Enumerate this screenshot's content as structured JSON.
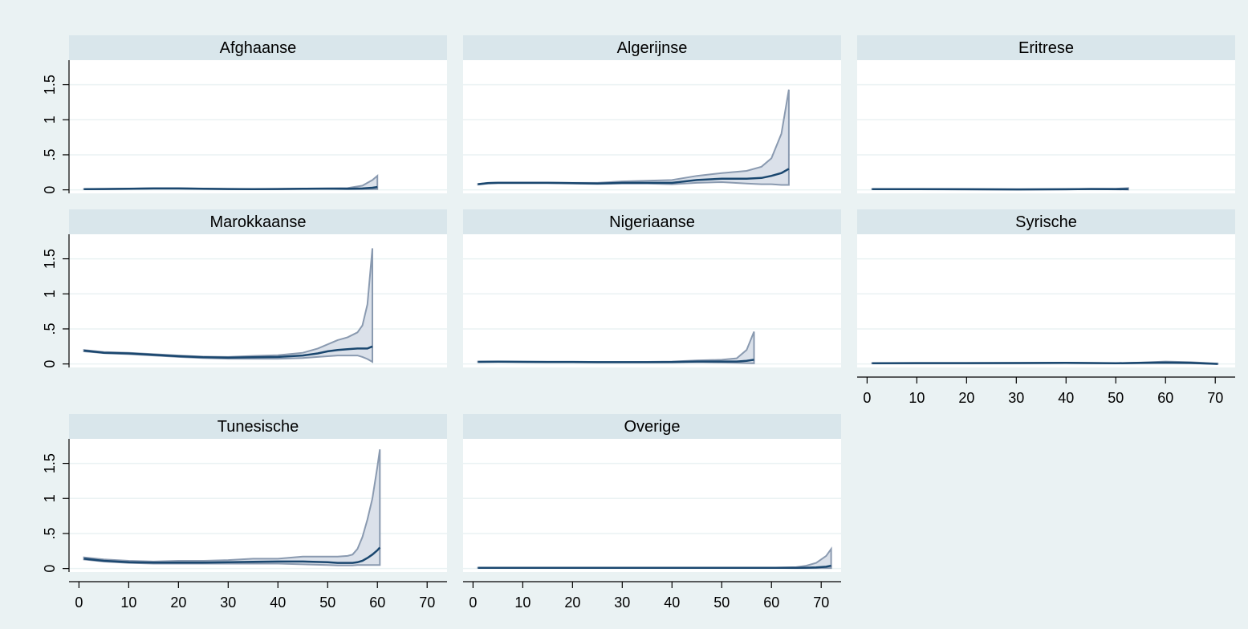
{
  "colors": {
    "background": "#eaf2f3",
    "panel": "#ffffff",
    "strip": "#d9e6eb",
    "estimate_line": "#1a476f",
    "ci_band_fill": "#dbe1ea",
    "ci_band_edge": "#8a9ab0"
  },
  "chart_data": {
    "type": "area",
    "layout": "small multiples, 3 columns, 3 rows",
    "title": "",
    "xlabel": "",
    "ylabel": "",
    "xlim": [
      0,
      72
    ],
    "ylim": [
      -0.05,
      1.85
    ],
    "x_ticks": [
      0,
      10,
      20,
      30,
      40,
      50,
      60,
      70
    ],
    "y_ticks": [
      0,
      0.5,
      1,
      1.5
    ],
    "y_tick_labels": [
      "0",
      ".5",
      "1",
      "1.5"
    ],
    "grid": true,
    "legend": "none",
    "panels": [
      {
        "name": "Afghaanse",
        "x": [
          1,
          5,
          10,
          15,
          20,
          25,
          30,
          35,
          40,
          45,
          50,
          54,
          57,
          59,
          60
        ],
        "y": [
          0.01,
          0.012,
          0.015,
          0.02,
          0.02,
          0.015,
          0.012,
          0.01,
          0.012,
          0.015,
          0.018,
          0.015,
          0.02,
          0.03,
          0.04
        ],
        "lower": [
          0.008,
          0.01,
          0.012,
          0.016,
          0.016,
          0.012,
          0.01,
          0.008,
          0.01,
          0.012,
          0.014,
          0.01,
          0.01,
          0.01,
          0.01
        ],
        "upper": [
          0.012,
          0.014,
          0.018,
          0.024,
          0.024,
          0.018,
          0.014,
          0.012,
          0.014,
          0.018,
          0.022,
          0.025,
          0.06,
          0.14,
          0.2
        ]
      },
      {
        "name": "Algerijnse",
        "x": [
          1,
          3,
          5,
          10,
          15,
          20,
          25,
          30,
          35,
          40,
          45,
          50,
          55,
          58,
          60,
          62,
          63.5
        ],
        "y": [
          0.08,
          0.095,
          0.1,
          0.1,
          0.1,
          0.095,
          0.09,
          0.1,
          0.1,
          0.1,
          0.14,
          0.16,
          0.16,
          0.17,
          0.2,
          0.24,
          0.3
        ],
        "lower": [
          0.075,
          0.09,
          0.095,
          0.095,
          0.095,
          0.09,
          0.085,
          0.09,
          0.09,
          0.08,
          0.1,
          0.11,
          0.09,
          0.08,
          0.08,
          0.07,
          0.07
        ],
        "upper": [
          0.085,
          0.1,
          0.105,
          0.105,
          0.105,
          0.1,
          0.1,
          0.12,
          0.13,
          0.14,
          0.2,
          0.24,
          0.27,
          0.33,
          0.45,
          0.8,
          1.43
        ]
      },
      {
        "name": "Eritrese",
        "x": [
          1,
          10,
          20,
          30,
          40,
          45,
          50,
          52.5
        ],
        "y": [
          0.01,
          0.01,
          0.008,
          0.006,
          0.008,
          0.012,
          0.01,
          0.012
        ],
        "lower": [
          0.008,
          0.008,
          0.006,
          0.004,
          0.006,
          0.009,
          0.006,
          0.004
        ],
        "upper": [
          0.012,
          0.012,
          0.01,
          0.008,
          0.01,
          0.015,
          0.016,
          0.025
        ]
      },
      {
        "name": "Marokkaanse",
        "x": [
          1,
          5,
          10,
          15,
          20,
          25,
          30,
          35,
          40,
          45,
          48,
          50,
          52,
          54,
          56,
          57,
          58,
          59
        ],
        "y": [
          0.19,
          0.16,
          0.15,
          0.13,
          0.11,
          0.095,
          0.09,
          0.095,
          0.1,
          0.12,
          0.15,
          0.18,
          0.2,
          0.21,
          0.22,
          0.22,
          0.22,
          0.25
        ],
        "lower": [
          0.18,
          0.155,
          0.14,
          0.12,
          0.1,
          0.085,
          0.075,
          0.075,
          0.075,
          0.085,
          0.1,
          0.11,
          0.12,
          0.12,
          0.12,
          0.1,
          0.07,
          0.03
        ],
        "upper": [
          0.2,
          0.17,
          0.16,
          0.14,
          0.12,
          0.105,
          0.1,
          0.115,
          0.125,
          0.16,
          0.22,
          0.28,
          0.34,
          0.38,
          0.45,
          0.55,
          0.85,
          1.65
        ]
      },
      {
        "name": "Nigeriaanse",
        "x": [
          1,
          5,
          10,
          15,
          20,
          25,
          30,
          35,
          40,
          45,
          50,
          53,
          55,
          56.5
        ],
        "y": [
          0.03,
          0.032,
          0.03,
          0.028,
          0.028,
          0.025,
          0.025,
          0.025,
          0.028,
          0.035,
          0.035,
          0.035,
          0.045,
          0.06
        ],
        "lower": [
          0.025,
          0.028,
          0.026,
          0.024,
          0.024,
          0.021,
          0.021,
          0.021,
          0.022,
          0.025,
          0.02,
          0.015,
          0.012,
          0.01
        ],
        "upper": [
          0.035,
          0.036,
          0.034,
          0.032,
          0.032,
          0.029,
          0.029,
          0.03,
          0.035,
          0.05,
          0.06,
          0.08,
          0.2,
          0.46
        ]
      },
      {
        "name": "Syrische",
        "x": [
          1,
          10,
          20,
          30,
          40,
          50,
          55,
          60,
          65,
          70.5
        ],
        "y": [
          0.01,
          0.012,
          0.012,
          0.013,
          0.015,
          0.01,
          0.015,
          0.02,
          0.015,
          0.0
        ],
        "lower": [
          0.008,
          0.01,
          0.01,
          0.011,
          0.012,
          0.008,
          0.01,
          0.012,
          0.008,
          0.0
        ],
        "upper": [
          0.012,
          0.014,
          0.014,
          0.016,
          0.018,
          0.012,
          0.02,
          0.035,
          0.025,
          0.005
        ]
      },
      {
        "name": "Tunesische",
        "x": [
          1,
          5,
          10,
          15,
          20,
          25,
          30,
          35,
          40,
          45,
          50,
          52,
          54,
          55,
          56,
          57,
          58,
          59,
          60,
          60.5
        ],
        "y": [
          0.14,
          0.11,
          0.09,
          0.085,
          0.085,
          0.085,
          0.09,
          0.095,
          0.1,
          0.1,
          0.09,
          0.08,
          0.08,
          0.08,
          0.09,
          0.11,
          0.15,
          0.2,
          0.26,
          0.3
        ],
        "lower": [
          0.13,
          0.1,
          0.08,
          0.07,
          0.07,
          0.07,
          0.07,
          0.07,
          0.07,
          0.06,
          0.05,
          0.045,
          0.045,
          0.045,
          0.05,
          0.05,
          0.05,
          0.05,
          0.05,
          0.05
        ],
        "upper": [
          0.16,
          0.13,
          0.11,
          0.1,
          0.11,
          0.11,
          0.12,
          0.14,
          0.14,
          0.17,
          0.17,
          0.17,
          0.18,
          0.2,
          0.28,
          0.45,
          0.7,
          1.0,
          1.45,
          1.7
        ]
      },
      {
        "name": "Overige",
        "x": [
          1,
          10,
          20,
          30,
          40,
          50,
          60,
          65,
          67,
          69,
          71,
          72
        ],
        "y": [
          0.01,
          0.01,
          0.01,
          0.01,
          0.01,
          0.01,
          0.01,
          0.01,
          0.012,
          0.015,
          0.025,
          0.04
        ],
        "lower": [
          0.008,
          0.008,
          0.008,
          0.008,
          0.008,
          0.008,
          0.008,
          0.006,
          0.006,
          0.006,
          0.006,
          0.006
        ],
        "upper": [
          0.012,
          0.012,
          0.012,
          0.012,
          0.012,
          0.012,
          0.012,
          0.02,
          0.04,
          0.08,
          0.18,
          0.28
        ]
      }
    ]
  }
}
